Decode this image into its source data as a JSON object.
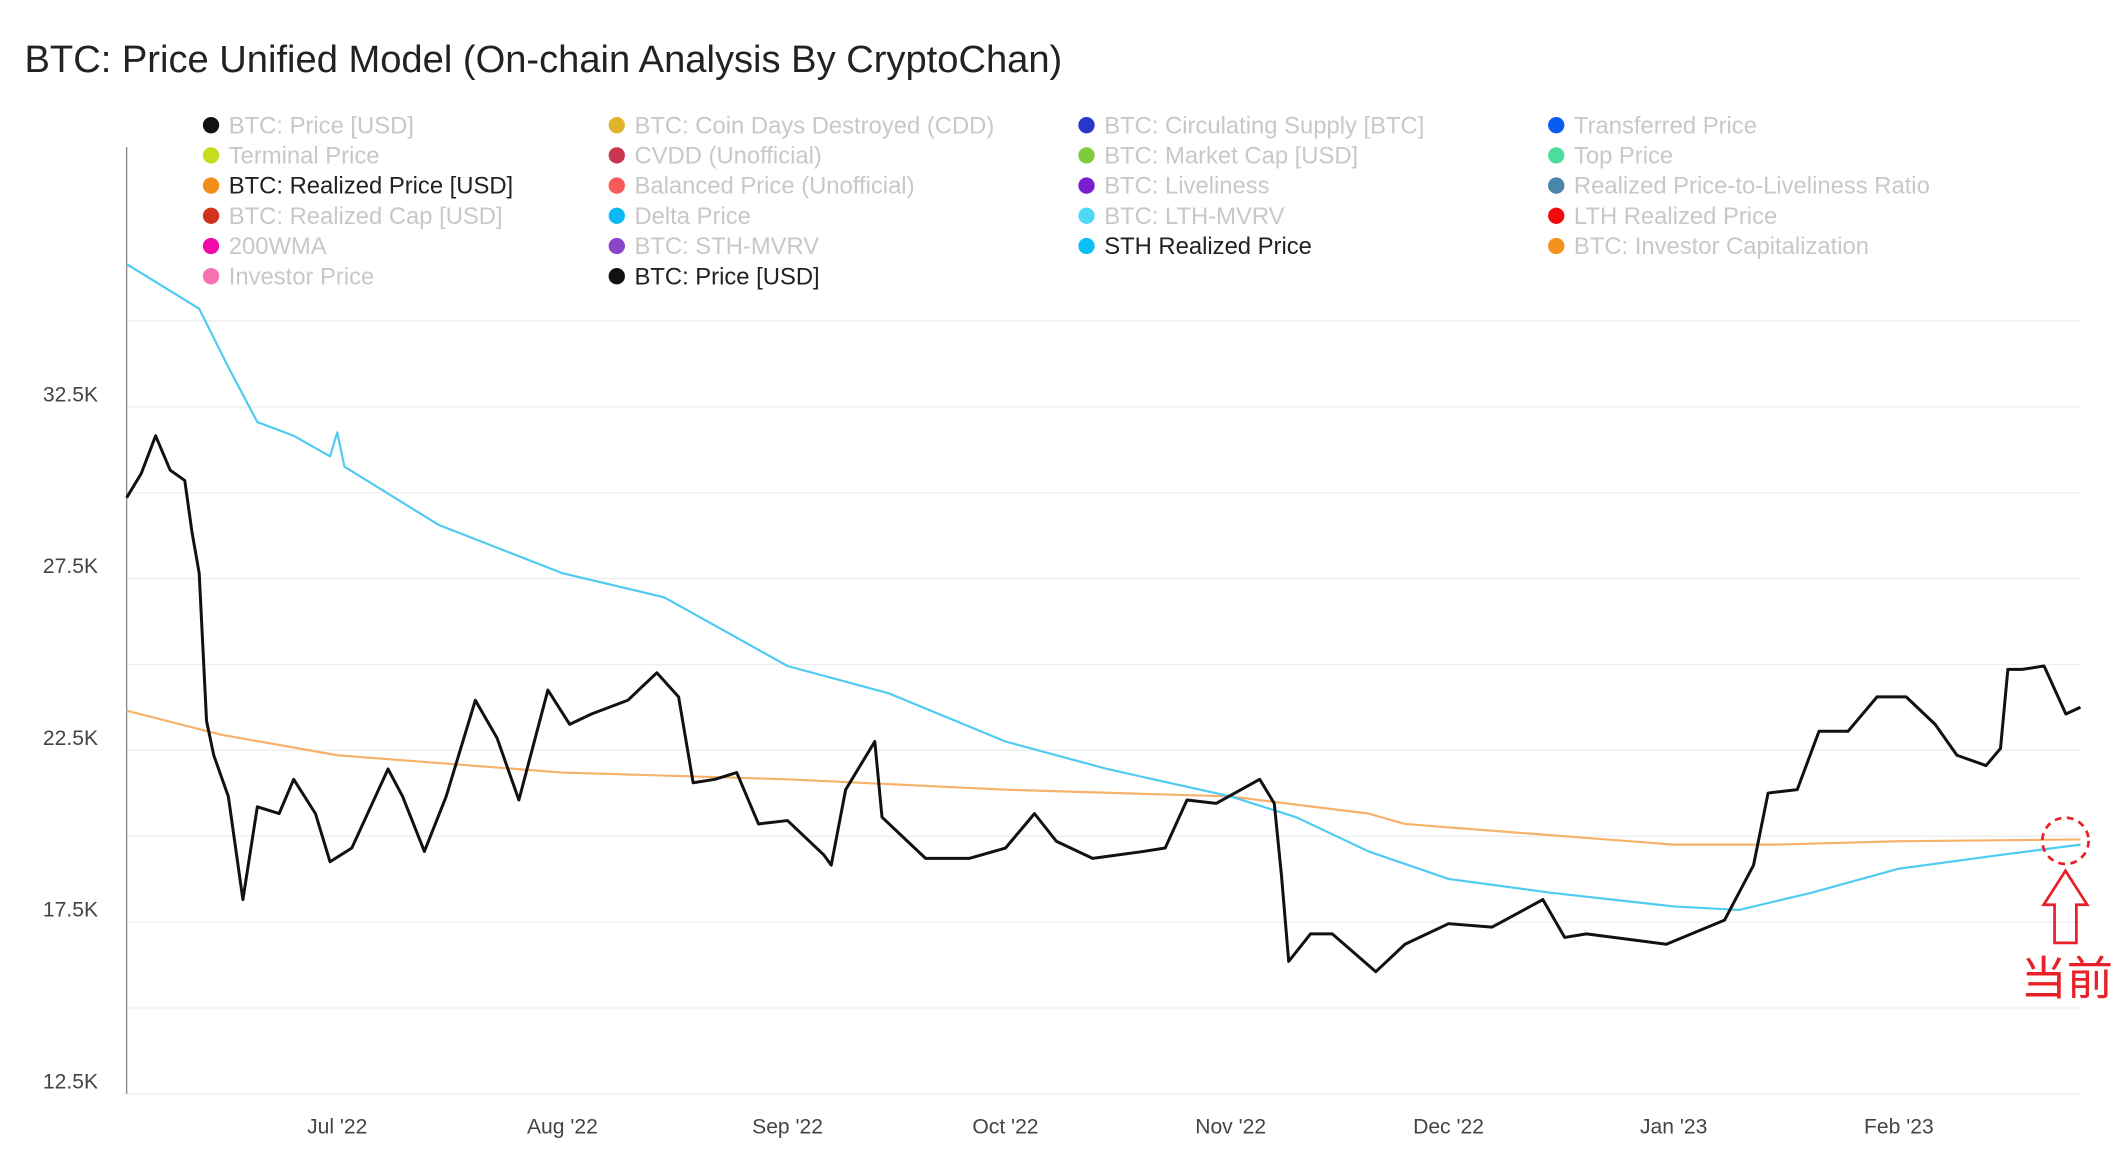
{
  "title": "BTC: Price Unified Model (On-chain Analysis By CryptoChan)",
  "legend": [
    {
      "label": "BTC: Price [USD]",
      "color": "#111111",
      "active": false
    },
    {
      "label": "BTC: Coin Days Destroyed (CDD)",
      "color": "#e0b42a",
      "active": false
    },
    {
      "label": "BTC: Circulating Supply [BTC]",
      "color": "#2a35c9",
      "active": false
    },
    {
      "label": "Transferred Price",
      "color": "#0a5cf0",
      "active": false
    },
    {
      "label": "Terminal Price",
      "color": "#c7dc1e",
      "active": false
    },
    {
      "label": "CVDD (Unofficial)",
      "color": "#c9374f",
      "active": false
    },
    {
      "label": "BTC: Market Cap [USD]",
      "color": "#7ecb3c",
      "active": false
    },
    {
      "label": "Top Price",
      "color": "#4cdc9c",
      "active": false
    },
    {
      "label": "BTC: Realized Price [USD]",
      "color": "#f28e1c",
      "active": true
    },
    {
      "label": "Balanced Price (Unofficial)",
      "color": "#f85a5a",
      "active": false
    },
    {
      "label": "BTC: Liveliness",
      "color": "#7a1fd0",
      "active": false
    },
    {
      "label": "Realized Price-to-Liveliness Ratio",
      "color": "#4a86a8",
      "active": false
    },
    {
      "label": "BTC: Realized Cap [USD]",
      "color": "#d0341e",
      "active": false
    },
    {
      "label": "Delta Price",
      "color": "#0ab8f5",
      "active": false
    },
    {
      "label": "BTC: LTH-MVRV",
      "color": "#4ed8f5",
      "active": false
    },
    {
      "label": "LTH Realized Price",
      "color": "#f20a0a",
      "active": false
    },
    {
      "label": "200WMA",
      "color": "#f00aa8",
      "active": false
    },
    {
      "label": "BTC: STH-MVRV",
      "color": "#8a45c8",
      "active": false
    },
    {
      "label": "STH Realized Price",
      "color": "#0ac0f5",
      "active": true
    },
    {
      "label": "BTC: Investor Capitalization",
      "color": "#f2921c",
      "active": false
    },
    {
      "label": "Investor Price",
      "color": "#f870b0",
      "active": false
    },
    {
      "label": "BTC: Price [USD]",
      "color": "#111111",
      "active": true
    }
  ],
  "annotation": {
    "text": "当前",
    "color": "#e8202a"
  },
  "chart_data": {
    "type": "line",
    "title": "BTC: Price Unified Model (On-chain Analysis By CryptoChan)",
    "xlim": [
      "2022-06-02",
      "2023-02-26"
    ],
    "ylim": [
      12500,
      36000
    ],
    "y_ticks": [
      12500,
      17500,
      22500,
      27500,
      32500
    ],
    "y_tick_labels": [
      "12.5K",
      "17.5K",
      "22.5K",
      "27.5K",
      "32.5K"
    ],
    "x_ticks": [
      "2022-07-01",
      "2022-08-01",
      "2022-09-01",
      "2022-10-01",
      "2022-11-01",
      "2022-12-01",
      "2023-01-01",
      "2023-02-01"
    ],
    "x_tick_labels": [
      "Jul '22",
      "Aug '22",
      "Sep '22",
      "Oct '22",
      "Nov '22",
      "Dec '22",
      "Jan '23",
      "Feb '23"
    ],
    "grid": true,
    "legend_placement": "top",
    "series": [
      {
        "name": "BTC: Price [USD]",
        "color": "#111111",
        "points": [
          [
            "2022-06-02",
            29500
          ],
          [
            "2022-06-04",
            30200
          ],
          [
            "2022-06-06",
            31300
          ],
          [
            "2022-06-08",
            30300
          ],
          [
            "2022-06-10",
            30000
          ],
          [
            "2022-06-11",
            28500
          ],
          [
            "2022-06-12",
            27300
          ],
          [
            "2022-06-13",
            23000
          ],
          [
            "2022-06-14",
            22000
          ],
          [
            "2022-06-16",
            20800
          ],
          [
            "2022-06-18",
            17800
          ],
          [
            "2022-06-20",
            20500
          ],
          [
            "2022-06-23",
            20300
          ],
          [
            "2022-06-25",
            21300
          ],
          [
            "2022-06-28",
            20300
          ],
          [
            "2022-06-30",
            18900
          ],
          [
            "2022-07-03",
            19300
          ],
          [
            "2022-07-08",
            21600
          ],
          [
            "2022-07-10",
            20800
          ],
          [
            "2022-07-13",
            19200
          ],
          [
            "2022-07-16",
            20800
          ],
          [
            "2022-07-20",
            23600
          ],
          [
            "2022-07-23",
            22500
          ],
          [
            "2022-07-26",
            20700
          ],
          [
            "2022-07-30",
            23900
          ],
          [
            "2022-08-02",
            22900
          ],
          [
            "2022-08-05",
            23200
          ],
          [
            "2022-08-10",
            23600
          ],
          [
            "2022-08-14",
            24400
          ],
          [
            "2022-08-17",
            23700
          ],
          [
            "2022-08-19",
            21200
          ],
          [
            "2022-08-22",
            21300
          ],
          [
            "2022-08-25",
            21500
          ],
          [
            "2022-08-28",
            20000
          ],
          [
            "2022-09-01",
            20100
          ],
          [
            "2022-09-06",
            19100
          ],
          [
            "2022-09-07",
            18800
          ],
          [
            "2022-09-09",
            21000
          ],
          [
            "2022-09-13",
            22400
          ],
          [
            "2022-09-14",
            20200
          ],
          [
            "2022-09-20",
            19000
          ],
          [
            "2022-09-26",
            19000
          ],
          [
            "2022-10-01",
            19300
          ],
          [
            "2022-10-05",
            20300
          ],
          [
            "2022-10-08",
            19500
          ],
          [
            "2022-10-13",
            19000
          ],
          [
            "2022-10-20",
            19200
          ],
          [
            "2022-10-23",
            19300
          ],
          [
            "2022-10-26",
            20700
          ],
          [
            "2022-10-30",
            20600
          ],
          [
            "2022-11-05",
            21300
          ],
          [
            "2022-11-07",
            20600
          ],
          [
            "2022-11-08",
            18500
          ],
          [
            "2022-11-09",
            16000
          ],
          [
            "2022-11-12",
            16800
          ],
          [
            "2022-11-15",
            16800
          ],
          [
            "2022-11-21",
            15700
          ],
          [
            "2022-11-25",
            16500
          ],
          [
            "2022-12-01",
            17100
          ],
          [
            "2022-12-07",
            17000
          ],
          [
            "2022-12-14",
            17800
          ],
          [
            "2022-12-17",
            16700
          ],
          [
            "2022-12-20",
            16800
          ],
          [
            "2022-12-31",
            16500
          ],
          [
            "2023-01-08",
            17200
          ],
          [
            "2023-01-12",
            18800
          ],
          [
            "2023-01-14",
            20900
          ],
          [
            "2023-01-18",
            21000
          ],
          [
            "2023-01-21",
            22700
          ],
          [
            "2023-01-25",
            22700
          ],
          [
            "2023-01-29",
            23700
          ],
          [
            "2023-02-02",
            23700
          ],
          [
            "2023-02-06",
            22900
          ],
          [
            "2023-02-09",
            22000
          ],
          [
            "2023-02-13",
            21700
          ],
          [
            "2023-02-15",
            22200
          ],
          [
            "2023-02-16",
            24500
          ],
          [
            "2023-02-18",
            24500
          ],
          [
            "2023-02-21",
            24600
          ],
          [
            "2023-02-24",
            23200
          ],
          [
            "2023-02-26",
            23400
          ]
        ]
      },
      {
        "name": "STH Realized Price",
        "color": "#4fcbf2",
        "points": [
          [
            "2022-06-02",
            36300
          ],
          [
            "2022-06-12",
            35000
          ],
          [
            "2022-06-16",
            33300
          ],
          [
            "2022-06-20",
            31700
          ],
          [
            "2022-06-25",
            31300
          ],
          [
            "2022-06-30",
            30700
          ],
          [
            "2022-07-01",
            31400
          ],
          [
            "2022-07-02",
            30400
          ],
          [
            "2022-07-15",
            28700
          ],
          [
            "2022-08-01",
            27300
          ],
          [
            "2022-08-15",
            26600
          ],
          [
            "2022-09-01",
            24600
          ],
          [
            "2022-09-15",
            23800
          ],
          [
            "2022-10-01",
            22400
          ],
          [
            "2022-10-15",
            21600
          ],
          [
            "2022-11-01",
            20800
          ],
          [
            "2022-11-10",
            20200
          ],
          [
            "2022-11-20",
            19200
          ],
          [
            "2022-12-01",
            18400
          ],
          [
            "2022-12-15",
            18000
          ],
          [
            "2023-01-01",
            17600
          ],
          [
            "2023-01-10",
            17500
          ],
          [
            "2023-01-20",
            18000
          ],
          [
            "2023-02-01",
            18700
          ],
          [
            "2023-02-15",
            19100
          ],
          [
            "2023-02-26",
            19400
          ]
        ]
      },
      {
        "name": "BTC: Realized Price [USD]",
        "color": "#f6b26b",
        "points": [
          [
            "2022-06-02",
            23300
          ],
          [
            "2022-06-15",
            22600
          ],
          [
            "2022-07-01",
            22000
          ],
          [
            "2022-08-01",
            21500
          ],
          [
            "2022-09-01",
            21300
          ],
          [
            "2022-10-01",
            21000
          ],
          [
            "2022-11-01",
            20800
          ],
          [
            "2022-11-20",
            20300
          ],
          [
            "2022-11-25",
            20000
          ],
          [
            "2022-12-01",
            19900
          ],
          [
            "2023-01-01",
            19400
          ],
          [
            "2023-01-15",
            19400
          ],
          [
            "2023-02-01",
            19500
          ],
          [
            "2023-02-26",
            19550
          ]
        ]
      }
    ]
  }
}
